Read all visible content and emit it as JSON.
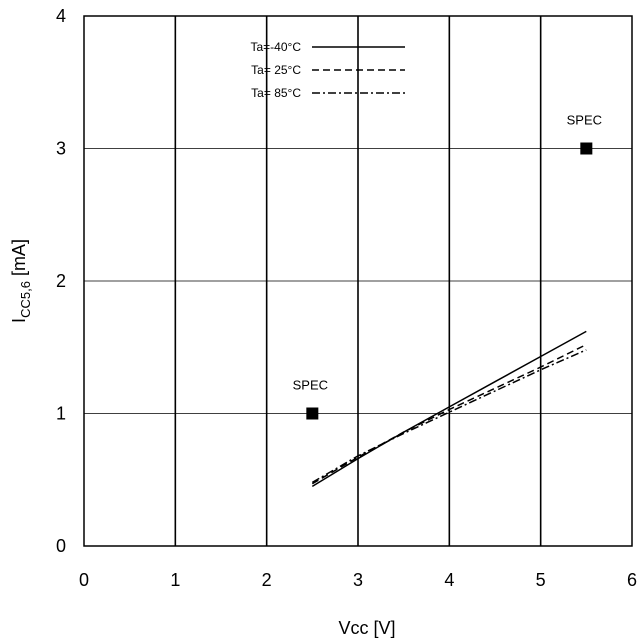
{
  "chart_data": {
    "type": "line",
    "title": "",
    "xlabel": "Vcc [V]",
    "ylabel": {
      "main": "I",
      "sub": "CC5,6",
      "unit": " [mA]"
    },
    "xlim": [
      0,
      6
    ],
    "ylim": [
      0,
      4
    ],
    "xticks": [
      "0",
      "1",
      "2",
      "3",
      "4",
      "5",
      "6"
    ],
    "yticks": [
      "0",
      "1",
      "2",
      "3",
      "4"
    ],
    "grid": true,
    "legend_position": "top-center",
    "series": [
      {
        "name": "Ta=-40°C",
        "style": "solid",
        "x": [
          2.5,
          3.0,
          3.5,
          4.0,
          4.5,
          5.0,
          5.5
        ],
        "y": [
          0.45,
          0.66,
          0.86,
          1.05,
          1.24,
          1.43,
          1.62
        ]
      },
      {
        "name": "Ta= 25°C",
        "style": "dashed",
        "x": [
          2.5,
          3.0,
          3.5,
          4.0,
          4.5,
          5.0,
          5.5
        ],
        "y": [
          0.47,
          0.67,
          0.86,
          1.03,
          1.19,
          1.35,
          1.52
        ]
      },
      {
        "name": "Ta= 85°C",
        "style": "dashdot",
        "x": [
          2.5,
          3.0,
          3.5,
          4.0,
          4.5,
          5.0,
          5.5
        ],
        "y": [
          0.48,
          0.68,
          0.85,
          1.01,
          1.17,
          1.33,
          1.48
        ]
      }
    ],
    "annotations": [
      {
        "label": "SPEC",
        "x": 2.5,
        "y": 1.0
      },
      {
        "label": "SPEC",
        "x": 5.5,
        "y": 3.0
      }
    ]
  }
}
